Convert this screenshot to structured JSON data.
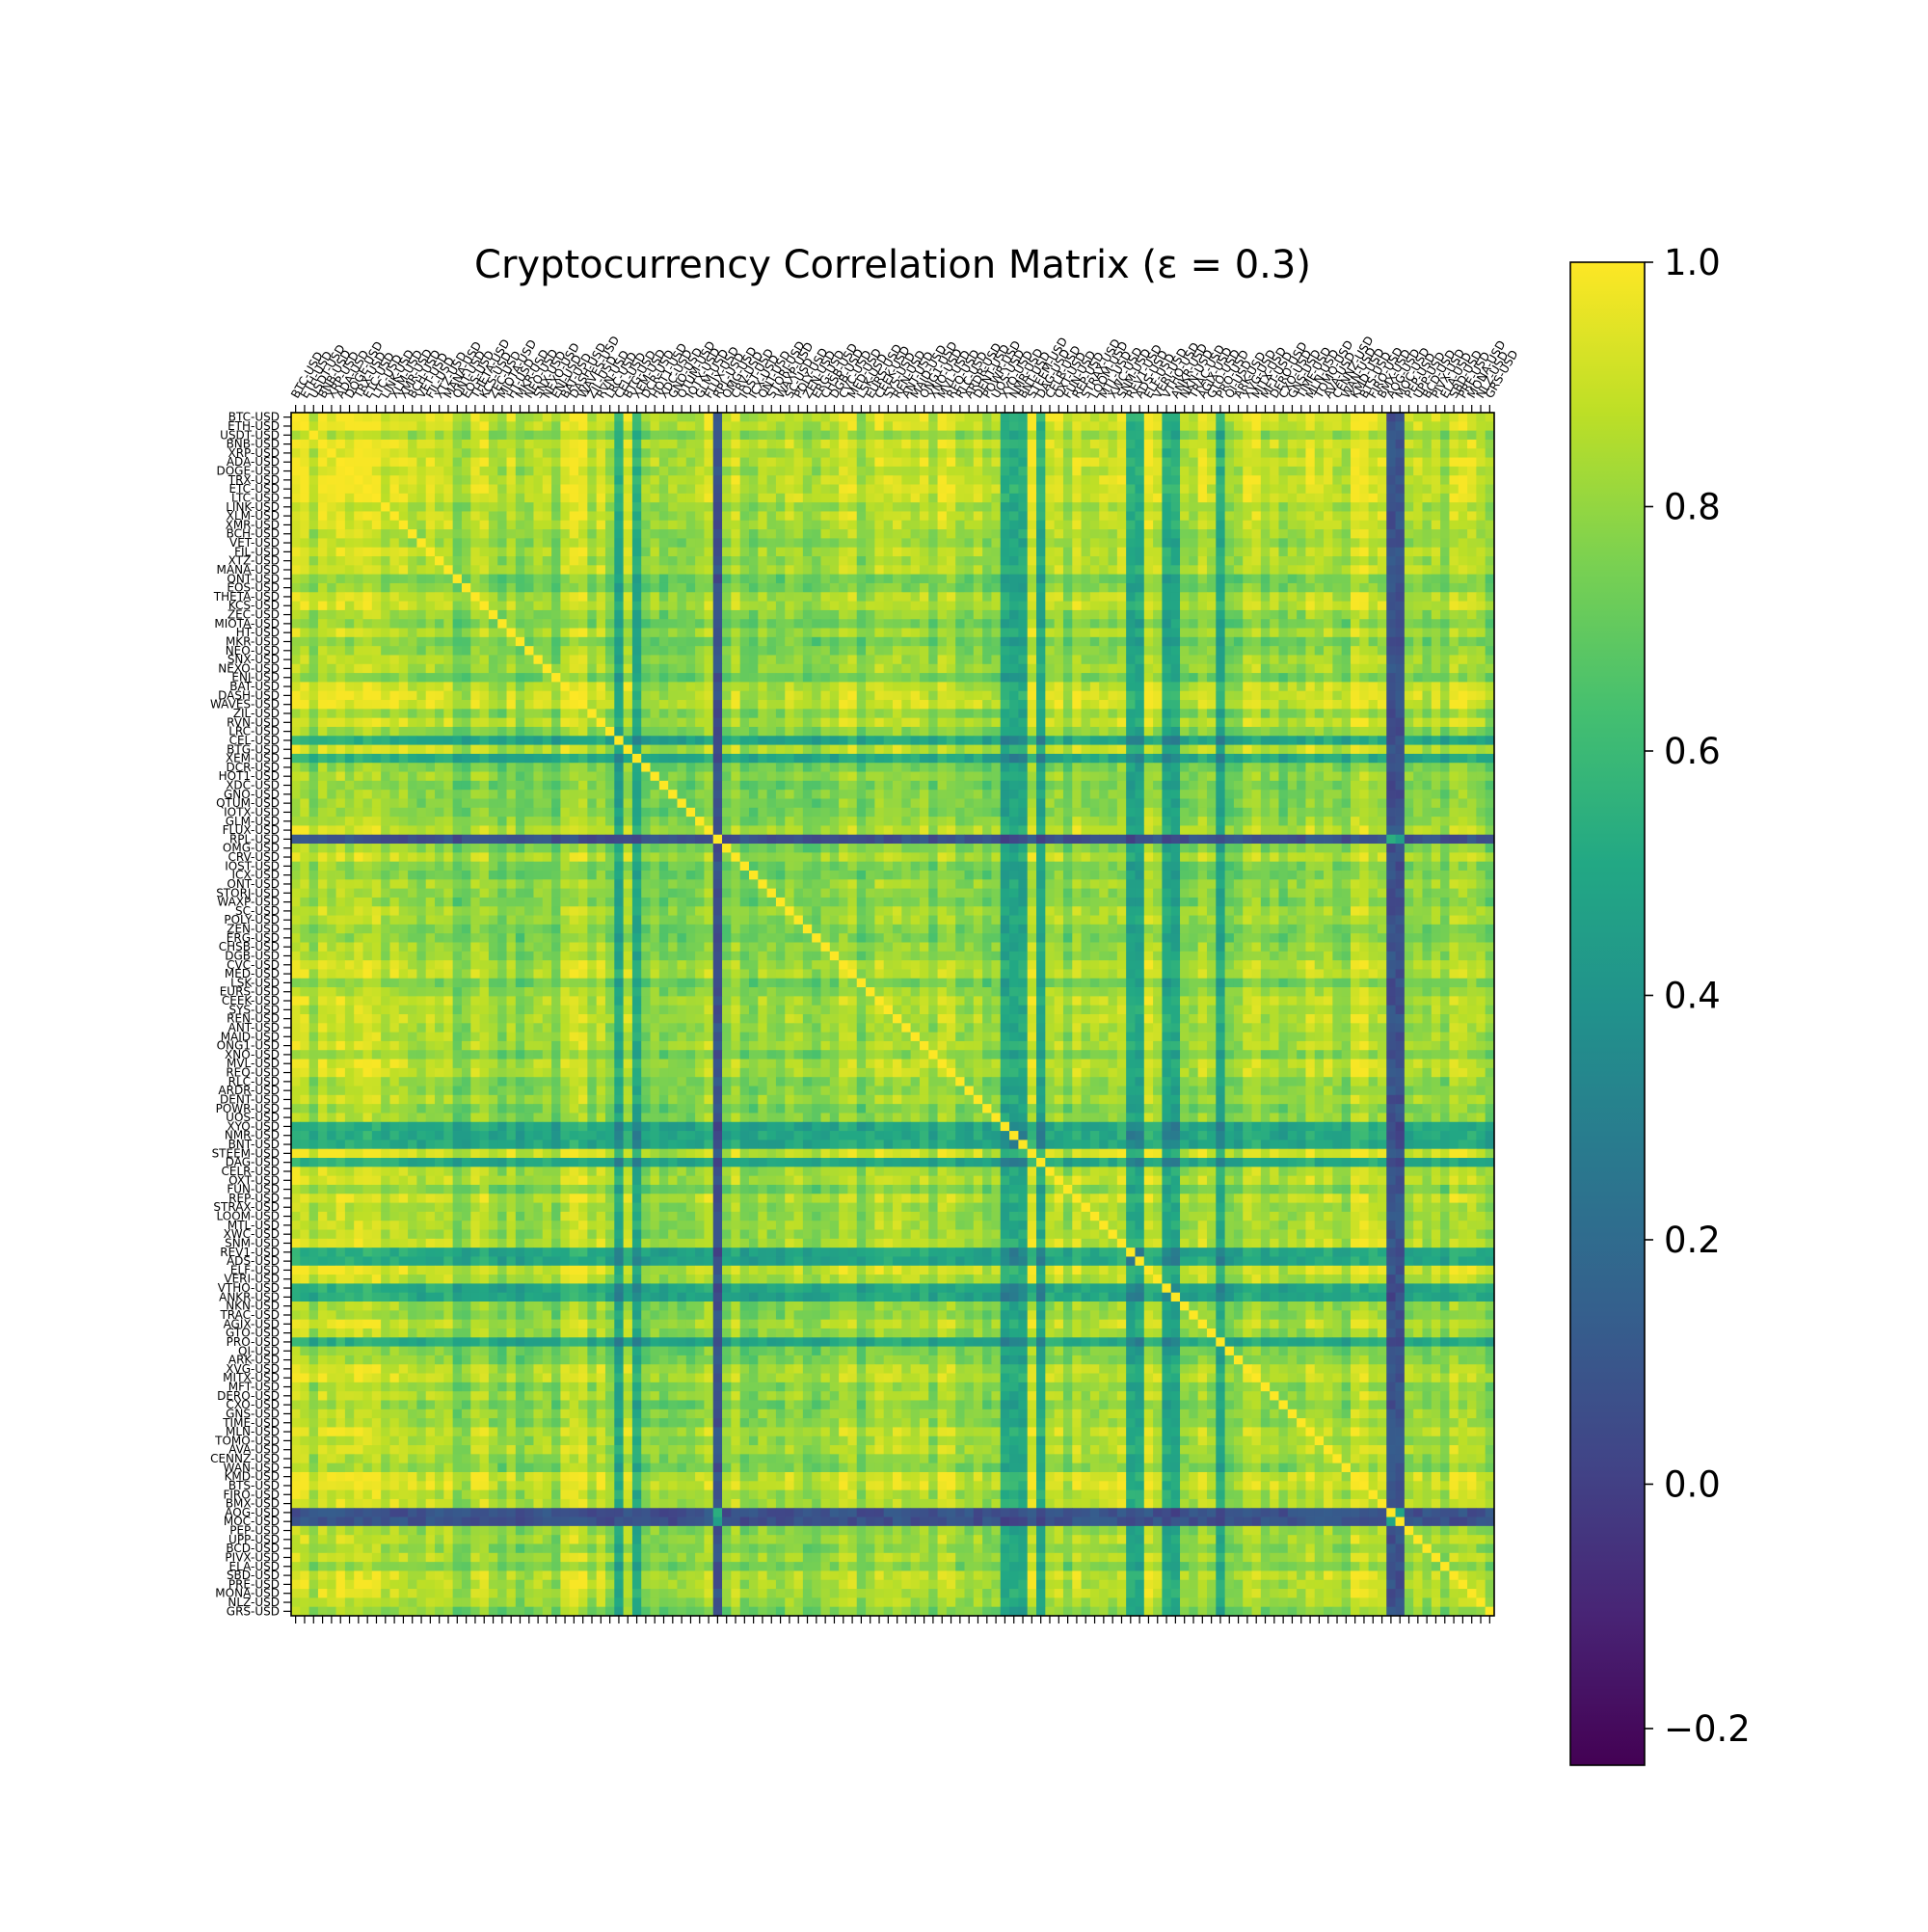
{
  "chart_data": {
    "type": "heatmap",
    "title": "Cryptocurrency Correlation Matrix (ε = 0.3)",
    "colormap": "viridis",
    "value_range": [
      -0.23,
      1.0
    ],
    "colorbar_ticks": [
      1.0,
      0.8,
      0.6,
      0.4,
      0.2,
      0.0,
      -0.2
    ],
    "colorbar_tick_labels": [
      "1.0",
      "0.8",
      "0.6",
      "0.4",
      "0.2",
      "0.0",
      "−0.2"
    ],
    "labels": [
      "BTC-USD",
      "ETH-USD",
      "USDT-USD",
      "BNB-USD",
      "XRP-USD",
      "ADA-USD",
      "DOGE-USD",
      "TRX-USD",
      "ETC-USD",
      "LTC-USD",
      "LINK-USD",
      "XLM-USD",
      "XMR-USD",
      "BCH-USD",
      "VET-USD",
      "FIL-USD",
      "XTZ-USD",
      "MANA-USD",
      "QNT-USD",
      "EOS-USD",
      "THETA-USD",
      "KCS-USD",
      "ZEC-USD",
      "MIOTA-USD",
      "HT-USD",
      "MKR-USD",
      "NEO-USD",
      "SNX-USD",
      "NEXO-USD",
      "ENJ-USD",
      "BAT-USD",
      "DASH-USD",
      "WAVES-USD",
      "ZIL-USD",
      "RVN-USD",
      "LRC-USD",
      "CEL-USD",
      "BTG-USD",
      "XEM-USD",
      "DCR-USD",
      "HOT1-USD",
      "XDC-USD",
      "GNO-USD",
      "QTUM-USD",
      "IOTX-USD",
      "GLM-USD",
      "FLUX-USD",
      "RPL-USD",
      "OMG-USD",
      "CRV-USD",
      "IOST-USD",
      "ICX-USD",
      "ONT-USD",
      "STORJ-USD",
      "WAXP-USD",
      "SC-USD",
      "POLY-USD",
      "ZEN-USD",
      "ERG-USD",
      "CHSB-USD",
      "DGB-USD",
      "CVC-USD",
      "MED-USD",
      "LSK-USD",
      "EURS-USD",
      "CEEK-USD",
      "SYS-USD",
      "REN-USD",
      "ANT-USD",
      "MAID-USD",
      "ONG1-USD",
      "XNO-USD",
      "MVL-USD",
      "REQ-USD",
      "RLC-USD",
      "ARDR-USD",
      "DENT-USD",
      "POWR-USD",
      "UOS-USD",
      "XYO-USD",
      "NMR-USD",
      "BNT-USD",
      "STEEM-USD",
      "DAG-USD",
      "CELR-USD",
      "OXT-USD",
      "FUN-USD",
      "REP-USD",
      "STRAX-USD",
      "LOOM-USD",
      "MTL-USD",
      "XWC-USD",
      "SNM-USD",
      "REV1-USD",
      "ADS-USD",
      "ELF-USD",
      "VERI-USD",
      "VTHO-USD",
      "ANKR-USD",
      "NKN-USD",
      "TRAC-USD",
      "AGIX-USD",
      "GTO-USD",
      "PRO-USD",
      "QI-USD",
      "ARK-USD",
      "XVG-USD",
      "MITX-USD",
      "MFT-USD",
      "DERO-USD",
      "CXO-USD",
      "GNS-USD",
      "TIME-USD",
      "MLN-USD",
      "TOMO-USD",
      "AVA-USD",
      "CENNZ-USD",
      "WAN-USD",
      "KMD-USD",
      "BTS-USD",
      "FIRO-USD",
      "BMX-USD",
      "AOG-USD",
      "MOC-USD",
      "PEP-USD",
      "UPP-USD",
      "BCD-USD",
      "PIVX-USD",
      "ELA-USD",
      "SBD-USD",
      "PRE-USD",
      "MONA-USD",
      "NLZ-USD",
      "GRS-USD"
    ],
    "low_correlation_assets": [
      "CEL-USD",
      "XEM-USD",
      "RPL-USD",
      "XYO-USD",
      "NMR-USD",
      "BNT-USD",
      "DAG-USD",
      "REV1-USD",
      "ADS-USD",
      "VTHO-USD",
      "ANKR-USD",
      "PRO-USD",
      "AOG-USD",
      "MOC-USD"
    ],
    "very_low_correlation_assets": [
      "RPL-USD",
      "AOG-USD",
      "MOC-USD"
    ],
    "high_correlation_assets": [
      "BTC-USD",
      "ETH-USD",
      "BNB-USD",
      "ADA-USD",
      "TRX-USD",
      "ETC-USD",
      "LTC-USD",
      "STEEM-USD",
      "ELF-USD",
      "KMD-USD",
      "BTS-USD",
      "DASH-USD",
      "WAVES-USD"
    ],
    "diagonal_value": 1.0,
    "typical_offdiagonal_range": [
      0.55,
      0.95
    ]
  }
}
